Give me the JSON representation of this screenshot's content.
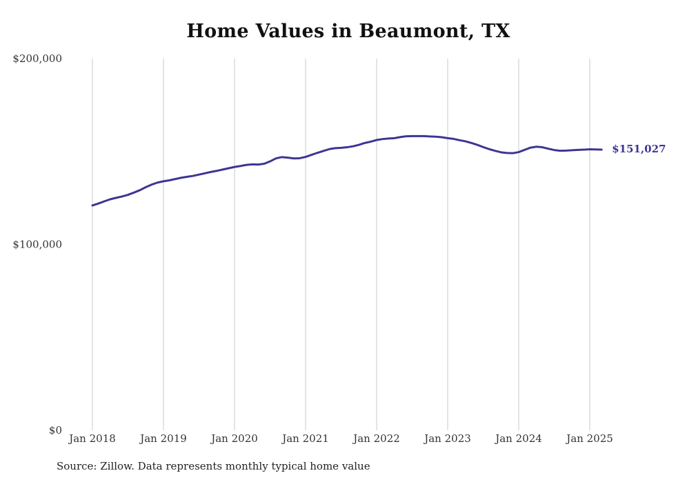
{
  "chart_data": {
    "type": "line",
    "title": "Home Values in Beaumont, TX",
    "xlabel": "",
    "ylabel": "",
    "x_ticks": [
      "Jan 2018",
      "Jan 2019",
      "Jan 2020",
      "Jan 2021",
      "Jan 2022",
      "Jan 2023",
      "Jan 2024",
      "Jan 2025"
    ],
    "y_ticks": [
      "$0",
      "$100,000",
      "$200,000"
    ],
    "ylim": [
      0,
      200000
    ],
    "xlim": [
      "2018-01",
      "2025-03"
    ],
    "grid": "vertical lines at each January",
    "line_color": "#3d3593",
    "end_label": "$151,027",
    "series": [
      {
        "x": [
          "2018-01",
          "2018-02",
          "2018-03",
          "2018-04",
          "2018-05",
          "2018-06",
          "2018-07",
          "2018-08",
          "2018-09",
          "2018-10",
          "2018-11",
          "2018-12",
          "2019-01",
          "2019-02",
          "2019-03",
          "2019-04",
          "2019-05",
          "2019-06",
          "2019-07",
          "2019-08",
          "2019-09",
          "2019-10",
          "2019-11",
          "2019-12",
          "2020-01",
          "2020-02",
          "2020-03",
          "2020-04",
          "2020-05",
          "2020-06",
          "2020-07",
          "2020-08",
          "2020-09",
          "2020-10",
          "2020-11",
          "2020-12",
          "2021-01",
          "2021-02",
          "2021-03",
          "2021-04",
          "2021-05",
          "2021-06",
          "2021-07",
          "2021-08",
          "2021-09",
          "2021-10",
          "2021-11",
          "2021-12",
          "2022-01",
          "2022-02",
          "2022-03",
          "2022-04",
          "2022-05",
          "2022-06",
          "2022-07",
          "2022-08",
          "2022-09",
          "2022-10",
          "2022-11",
          "2022-12",
          "2023-01",
          "2023-02",
          "2023-03",
          "2023-04",
          "2023-05",
          "2023-06",
          "2023-07",
          "2023-08",
          "2023-09",
          "2023-10",
          "2023-11",
          "2023-12",
          "2024-01",
          "2024-02",
          "2024-03",
          "2024-04",
          "2024-05",
          "2024-06",
          "2024-07",
          "2024-08",
          "2024-09",
          "2024-10",
          "2024-11",
          "2024-12",
          "2025-01",
          "2025-02",
          "2025-03"
        ],
        "values": [
          121000,
          122000,
          123200,
          124300,
          125100,
          125800,
          126700,
          127900,
          129200,
          130800,
          132200,
          133300,
          134000,
          134500,
          135200,
          135900,
          136400,
          136900,
          137600,
          138300,
          139000,
          139600,
          140300,
          141000,
          141700,
          142200,
          142800,
          143100,
          143000,
          143400,
          144700,
          146300,
          147000,
          146700,
          146300,
          146400,
          147100,
          148200,
          149300,
          150300,
          151300,
          151800,
          152000,
          152300,
          152800,
          153600,
          154600,
          155300,
          156200,
          156700,
          157000,
          157200,
          157800,
          158200,
          158300,
          158300,
          158300,
          158100,
          158000,
          157700,
          157200,
          156800,
          156100,
          155500,
          154600,
          153600,
          152400,
          151300,
          150400,
          149600,
          149200,
          149100,
          149700,
          150900,
          152100,
          152600,
          152300,
          151500,
          150800,
          150400,
          150500,
          150700,
          150900,
          151000,
          151200,
          151100,
          151027
        ]
      }
    ]
  },
  "source_note": "Source: Zillow. Data represents monthly typical home value"
}
